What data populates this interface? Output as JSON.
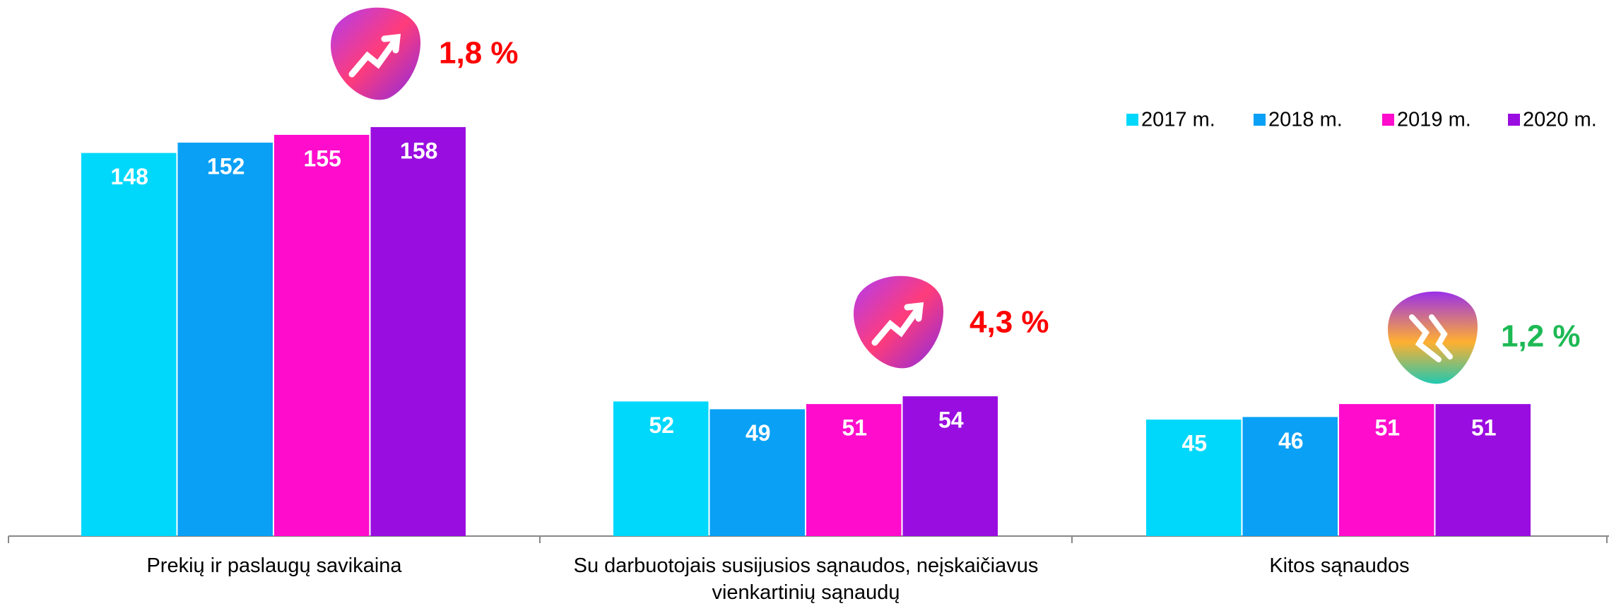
{
  "chart_data": {
    "type": "bar",
    "categories": [
      "Prekių ir paslaugų savikaina",
      "Su darbuotojais susijusios sąnaudos, neįskaičiavus vienkartinių sąnaudų",
      "Kitos sąnaudos"
    ],
    "series": [
      {
        "name": "2017 m.",
        "color": "#00d8fb",
        "values": [
          148,
          52,
          45
        ]
      },
      {
        "name": "2018 m.",
        "color": "#0aa0f5",
        "values": [
          152,
          49,
          46
        ]
      },
      {
        "name": "2019 m.",
        "color": "#ff0ccc",
        "values": [
          155,
          51,
          51
        ]
      },
      {
        "name": "2020 m.",
        "color": "#9a0de0",
        "values": [
          158,
          54,
          51
        ]
      }
    ],
    "annotations": [
      {
        "text": "1,8 %",
        "color": "#ff0000"
      },
      {
        "text": "4,3 %",
        "color": "#ff0000"
      },
      {
        "text": "1,2 %",
        "color": "#1db954"
      }
    ],
    "ylim": [
      0,
      200
    ],
    "legend": "top-right"
  }
}
